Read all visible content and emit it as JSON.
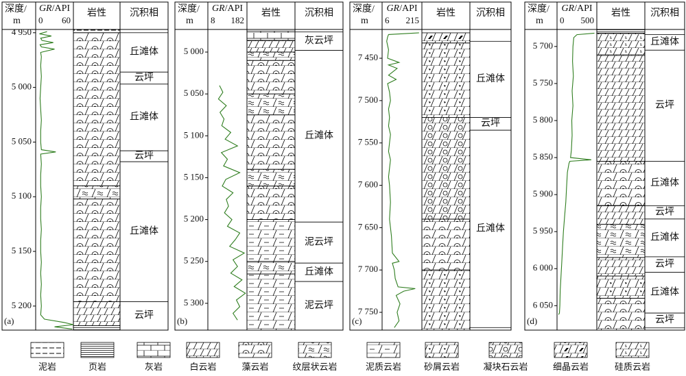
{
  "chart_data": [
    {
      "type": "well-log",
      "panel_label": "(a)",
      "depth_label": "深度/",
      "depth_unit": "m",
      "gr_label": "GR",
      "gr_unit": "/API",
      "lith_header": "岩性",
      "facies_header": "沉积相",
      "ylim": [
        4947,
        5222
      ],
      "yticks": [
        {
          "value": 4950,
          "label": "4 950"
        },
        {
          "value": 5000,
          "label": "5 000"
        },
        {
          "value": 5050,
          "label": "5 050"
        },
        {
          "value": 5100,
          "label": "5 100"
        },
        {
          "value": 5150,
          "label": "5 150"
        },
        {
          "value": 5200,
          "label": "5 200"
        }
      ],
      "xlim": [
        0,
        60
      ],
      "xticks": [
        0,
        60
      ],
      "color": "#2e7d1e",
      "x": [
        4949,
        4951,
        4953,
        4955,
        4957,
        4959,
        4961,
        4963,
        4965,
        4968,
        4972,
        4980,
        4990,
        5000,
        5010,
        5020,
        5030,
        5040,
        5050,
        5057,
        5059,
        5061,
        5070,
        5080,
        5090,
        5100,
        5110,
        5120,
        5130,
        5140,
        5150,
        5160,
        5170,
        5180,
        5190,
        5200,
        5208,
        5212,
        5215,
        5217,
        5219,
        5221
      ],
      "values": [
        18,
        6,
        25,
        8,
        10,
        28,
        7,
        9,
        30,
        8,
        9,
        8,
        9,
        8,
        7,
        8,
        9,
        8,
        8,
        9,
        32,
        8,
        9,
        8,
        8,
        9,
        8,
        8,
        9,
        8,
        8,
        9,
        8,
        9,
        8,
        9,
        8,
        14,
        45,
        60,
        30,
        58
      ],
      "lithology": [
        {
          "lithology": "泥岩",
          "top": 4947,
          "bottom": 4950
        },
        {
          "lithology": "藻云岩",
          "top": 4950,
          "bottom": 5090
        },
        {
          "lithology": "纹层状云岩",
          "top": 5090,
          "bottom": 5102
        },
        {
          "lithology": "藻云岩",
          "top": 5102,
          "bottom": 5196
        },
        {
          "lithology": "白云岩",
          "top": 5196,
          "bottom": 5218
        },
        {
          "lithology": "页岩",
          "top": 5218,
          "bottom": 5222
        }
      ],
      "facies": [
        {
          "label": "丘滩体",
          "top": 4950,
          "bottom": 4986
        },
        {
          "label": "云坪",
          "top": 4986,
          "bottom": 4997
        },
        {
          "label": "丘滩体",
          "top": 4997,
          "bottom": 5058
        },
        {
          "label": "云坪",
          "top": 5058,
          "bottom": 5068
        },
        {
          "label": "丘滩体",
          "top": 5068,
          "bottom": 5196
        },
        {
          "label": "云坪",
          "top": 5196,
          "bottom": 5222
        }
      ]
    },
    {
      "type": "well-log",
      "panel_label": "(b)",
      "depth_label": "深度/",
      "depth_unit": "m",
      "gr_label": "GR",
      "gr_unit": "/API",
      "lith_header": "岩性",
      "facies_header": "沉积相",
      "ylim": [
        4973,
        5332
      ],
      "yticks": [
        {
          "value": 5000,
          "label": "5 000"
        },
        {
          "value": 5050,
          "label": "5 050"
        },
        {
          "value": 5100,
          "label": "5 100"
        },
        {
          "value": 5150,
          "label": "5 150"
        },
        {
          "value": 5200,
          "label": "5 200"
        },
        {
          "value": 5250,
          "label": "5 250"
        },
        {
          "value": 5300,
          "label": "5 300"
        }
      ],
      "xlim": [
        8,
        182
      ],
      "xticks": [
        8,
        182
      ],
      "color": "#2e7d1e",
      "x": [
        5040,
        5048,
        5056,
        5064,
        5072,
        5080,
        5088,
        5096,
        5104,
        5112,
        5120,
        5128,
        5136,
        5144,
        5152,
        5160,
        5168,
        5176,
        5184,
        5192,
        5200,
        5208,
        5216,
        5224,
        5232,
        5240,
        5248,
        5256,
        5264,
        5272,
        5280,
        5288,
        5296,
        5304,
        5312,
        5320
      ],
      "values": [
        60,
        75,
        55,
        90,
        62,
        80,
        70,
        110,
        85,
        140,
        68,
        95,
        78,
        150,
        88,
        72,
        120,
        90,
        100,
        82,
        115,
        95,
        150,
        130,
        105,
        170,
        120,
        140,
        110,
        160,
        125,
        175,
        135,
        150,
        120,
        140
      ],
      "lithology": [
        {
          "lithology": "灰岩",
          "top": 4975,
          "bottom": 4986
        },
        {
          "lithology": "白云岩",
          "top": 4986,
          "bottom": 5000
        },
        {
          "lithology": "纹层状云岩",
          "top": 5000,
          "bottom": 5010
        },
        {
          "lithology": "藻云岩",
          "top": 5010,
          "bottom": 5050
        },
        {
          "lithology": "纹层状云岩",
          "top": 5050,
          "bottom": 5075
        },
        {
          "lithology": "藻云岩",
          "top": 5075,
          "bottom": 5140
        },
        {
          "lithology": "纹层状云岩",
          "top": 5140,
          "bottom": 5160
        },
        {
          "lithology": "藻云岩",
          "top": 5160,
          "bottom": 5200
        },
        {
          "lithology": "泥质云岩",
          "top": 5200,
          "bottom": 5250
        },
        {
          "lithology": "纹层状云岩",
          "top": 5250,
          "bottom": 5265
        },
        {
          "lithology": "泥质云岩",
          "top": 5265,
          "bottom": 5332
        }
      ],
      "facies": [
        {
          "label": "灰云坪",
          "top": 4976,
          "bottom": 4998
        },
        {
          "label": "丘滩体",
          "top": 4998,
          "bottom": 5203
        },
        {
          "label": "泥云坪",
          "top": 5203,
          "bottom": 5252
        },
        {
          "label": "丘滩体",
          "top": 5252,
          "bottom": 5274
        },
        {
          "label": "泥云坪",
          "top": 5274,
          "bottom": 5332
        }
      ]
    },
    {
      "type": "well-log",
      "panel_label": "(c)",
      "depth_label": "深度/",
      "depth_unit": "m",
      "gr_label": "GR",
      "gr_unit": "/API",
      "lith_header": "岩性",
      "facies_header": "沉积相",
      "ylim": [
        7416,
        7771
      ],
      "yticks": [
        {
          "value": 7450,
          "label": "7 450"
        },
        {
          "value": 7500,
          "label": "7 500"
        },
        {
          "value": 7550,
          "label": "7 550"
        },
        {
          "value": 7600,
          "label": "7 600"
        },
        {
          "value": 7650,
          "label": "7 650"
        },
        {
          "value": 7700,
          "label": "7 700"
        },
        {
          "value": 7750,
          "label": "7 750"
        }
      ],
      "xlim": [
        6,
        215
      ],
      "xticks": [
        6,
        215
      ],
      "color": "#2e7d1e",
      "x": [
        7420,
        7422,
        7425,
        7430,
        7440,
        7450,
        7455,
        7458,
        7462,
        7470,
        7475,
        7480,
        7490,
        7500,
        7510,
        7520,
        7530,
        7540,
        7550,
        7560,
        7570,
        7580,
        7590,
        7600,
        7620,
        7640,
        7660,
        7680,
        7690,
        7692,
        7700,
        7710,
        7720,
        7722,
        7725,
        7730,
        7740,
        7750,
        7760,
        7768
      ],
      "values": [
        200,
        40,
        35,
        30,
        40,
        35,
        95,
        40,
        85,
        40,
        80,
        35,
        45,
        50,
        40,
        45,
        40,
        50,
        45,
        40,
        50,
        45,
        40,
        45,
        50,
        45,
        55,
        60,
        95,
        60,
        70,
        75,
        90,
        180,
        120,
        80,
        100,
        85,
        95,
        70
      ],
      "lithology": [
        {
          "lithology": "细晶云岩",
          "top": 7420,
          "bottom": 7432
        },
        {
          "lithology": "砂屑云岩",
          "top": 7432,
          "bottom": 7520
        },
        {
          "lithology": "凝块石云岩",
          "top": 7520,
          "bottom": 7640
        },
        {
          "lithology": "藻云岩",
          "top": 7640,
          "bottom": 7700
        },
        {
          "lithology": "砂屑云岩",
          "top": 7700,
          "bottom": 7771
        }
      ],
      "facies": [
        {
          "label": "丘滩体",
          "top": 7430,
          "bottom": 7520
        },
        {
          "label": "云坪",
          "top": 7520,
          "bottom": 7535
        },
        {
          "label": "丘滩体",
          "top": 7535,
          "bottom": 7768
        }
      ]
    },
    {
      "type": "well-log",
      "panel_label": "(d)",
      "depth_label": "深度/",
      "depth_unit": "m",
      "gr_label": "GR",
      "gr_unit": "/API",
      "lith_header": "岩性",
      "facies_header": "沉积相",
      "ylim": [
        5677,
        6083
      ],
      "yticks": [
        {
          "value": 5700,
          "label": "5 700"
        },
        {
          "value": 5750,
          "label": "5 750"
        },
        {
          "value": 5800,
          "label": "5 800"
        },
        {
          "value": 5850,
          "label": "5 850"
        },
        {
          "value": 5900,
          "label": "5 900"
        },
        {
          "value": 5950,
          "label": "5 950"
        },
        {
          "value": 6000,
          "label": "6 000"
        },
        {
          "value": 6050,
          "label": "6 050"
        }
      ],
      "xlim": [
        0,
        500
      ],
      "xticks": [
        0,
        500
      ],
      "color": "#2e7d1e",
      "x": [
        5682,
        5684,
        5688,
        5700,
        5720,
        5740,
        5760,
        5780,
        5800,
        5820,
        5840,
        5850,
        5853,
        5855,
        5858,
        5870,
        5890,
        5910,
        5930,
        5950,
        5970,
        5990,
        6010,
        6030,
        6050,
        6060,
        6062
      ],
      "values": [
        470,
        250,
        210,
        200,
        195,
        205,
        190,
        200,
        185,
        190,
        180,
        170,
        430,
        160,
        150,
        130,
        120,
        110,
        95,
        80,
        70,
        60,
        50,
        40,
        35,
        30,
        20
      ],
      "lithology": [
        {
          "lithology": "页岩",
          "top": 5677,
          "bottom": 5682
        },
        {
          "lithology": "硅质云岩",
          "top": 5682,
          "bottom": 5712
        },
        {
          "lithology": "白云岩",
          "top": 5712,
          "bottom": 5855
        },
        {
          "lithology": "藻云岩",
          "top": 5855,
          "bottom": 5915
        },
        {
          "lithology": "白云岩",
          "top": 5915,
          "bottom": 5940
        },
        {
          "lithology": "纹层状云岩",
          "top": 5940,
          "bottom": 5985
        },
        {
          "lithology": "白云岩",
          "top": 5985,
          "bottom": 6010
        },
        {
          "lithology": "砂屑云岩",
          "top": 6010,
          "bottom": 6040
        },
        {
          "lithology": "藻云岩",
          "top": 6040,
          "bottom": 6083
        }
      ],
      "facies": [
        {
          "label": "丘滩体",
          "top": 5684,
          "bottom": 5705
        },
        {
          "label": "云坪",
          "top": 5705,
          "bottom": 5855
        },
        {
          "label": "丘滩体",
          "top": 5855,
          "bottom": 5915
        },
        {
          "label": "云坪",
          "top": 5915,
          "bottom": 5933
        },
        {
          "label": "丘滩体",
          "top": 5933,
          "bottom": 5984
        },
        {
          "label": "云坪",
          "top": 5984,
          "bottom": 6005
        },
        {
          "label": "丘滩体",
          "top": 6005,
          "bottom": 6060
        },
        {
          "label": "云坪",
          "top": 6060,
          "bottom": 6080
        }
      ]
    }
  ],
  "legend": [
    "泥岩",
    "页岩",
    "灰岩",
    "白云岩",
    "藻云岩",
    "纹层状云岩",
    "泥质云岩",
    "砂屑云岩",
    "凝块石云岩",
    "细晶云岩",
    "硅质云岩"
  ]
}
